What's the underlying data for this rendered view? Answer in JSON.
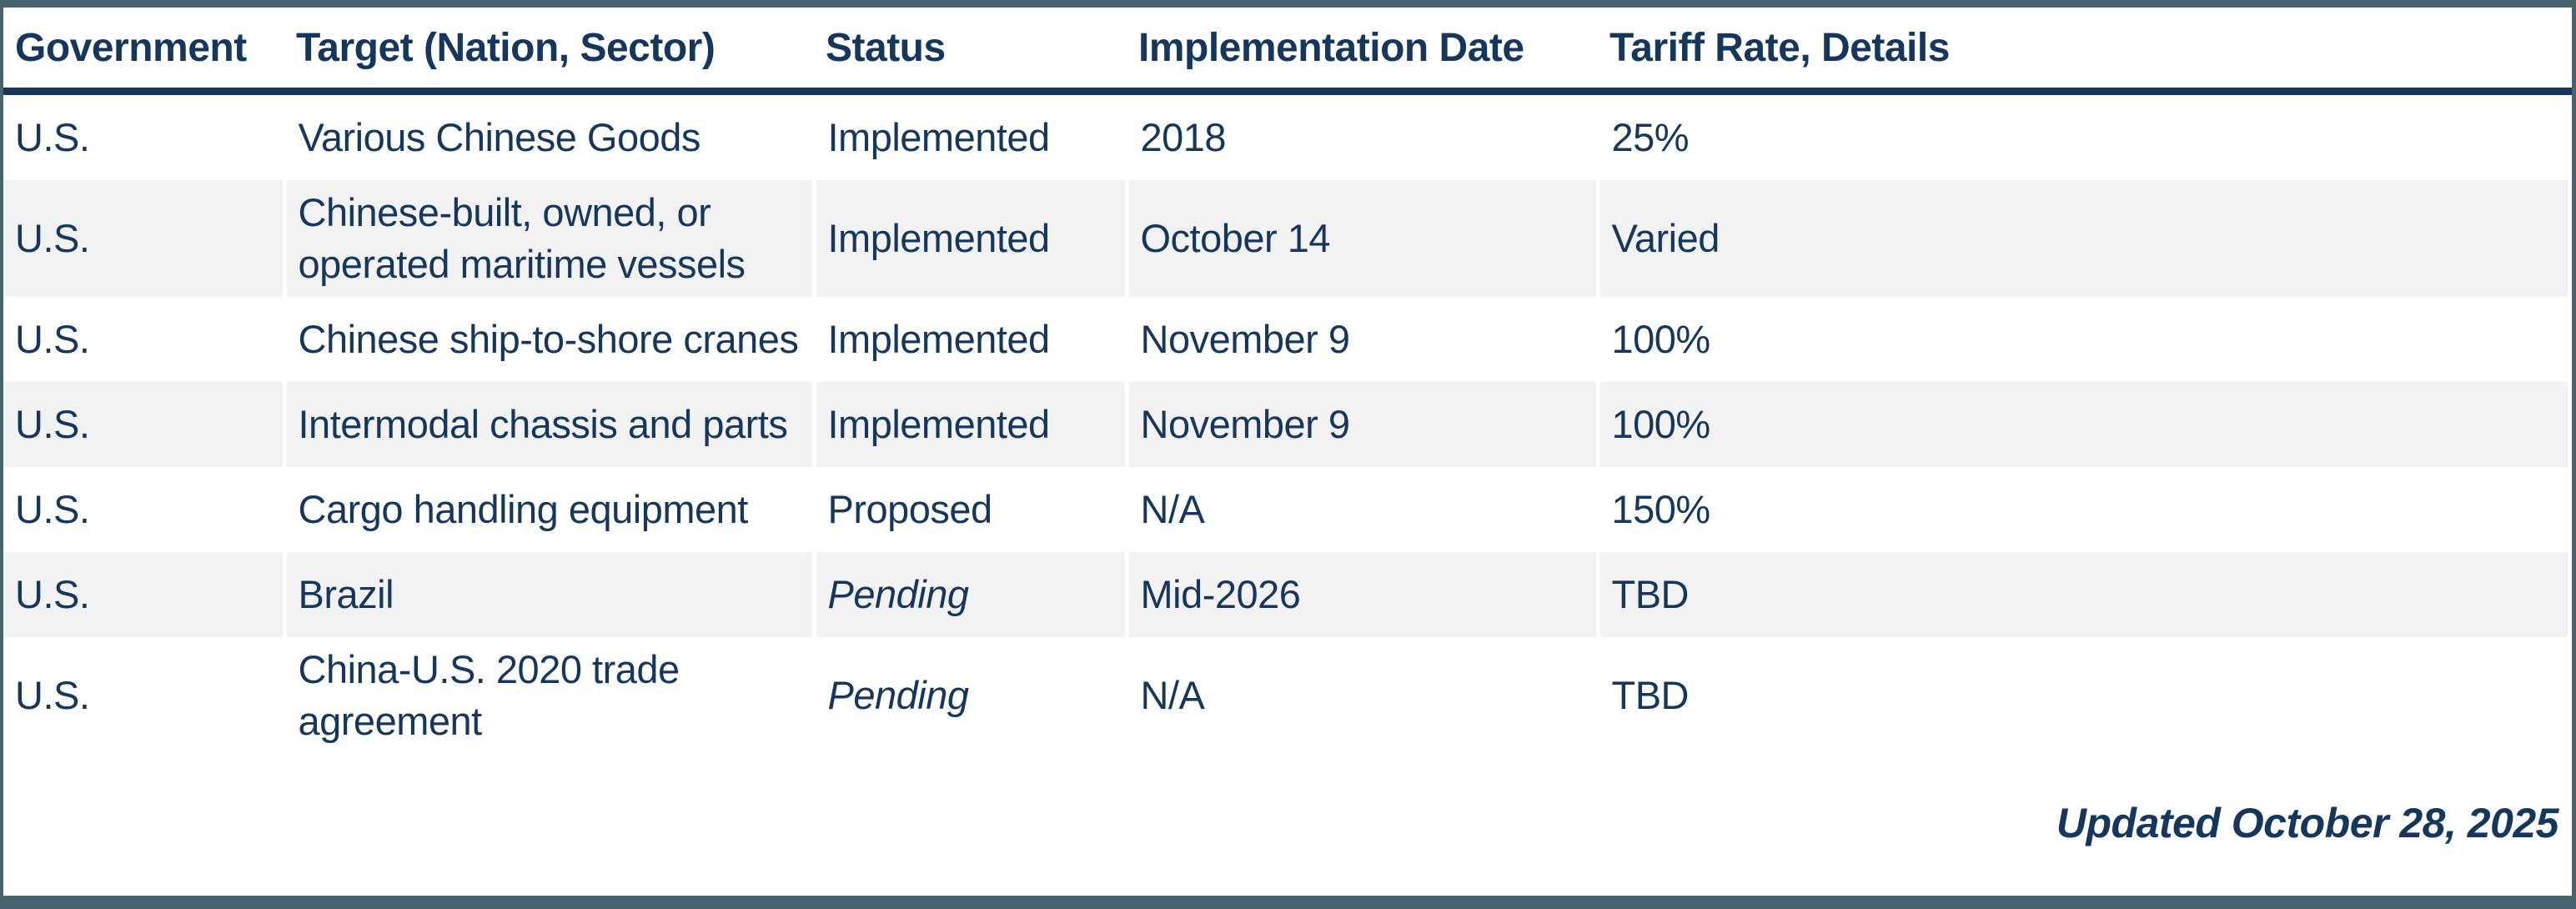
{
  "page": {
    "updated_note": "Updated October 28, 2025"
  },
  "colors": {
    "accent_bar": "#4a646f",
    "header_rule": "#16375d",
    "text": "#16375d",
    "stripe": "#f2f2f2",
    "row_bg": "#ffffff"
  },
  "table": {
    "columns": [
      "Government",
      "Target (Nation, Sector)",
      "Status",
      "Implementation Date",
      "Tariff Rate, Details"
    ],
    "rows": [
      {
        "government": "U.S.",
        "target": "Various Chinese Goods",
        "status": "Implemented",
        "status_style": "normal",
        "implementation_date": "2018",
        "tariff_rate": "25%"
      },
      {
        "government": "U.S.",
        "target": "Chinese-built, owned, or operated maritime vessels",
        "status": "Implemented",
        "status_style": "normal",
        "implementation_date": "October 14",
        "tariff_rate": "Varied"
      },
      {
        "government": "U.S.",
        "target": "Chinese ship-to-shore cranes",
        "status": "Implemented",
        "status_style": "normal",
        "implementation_date": "November 9",
        "tariff_rate": "100%"
      },
      {
        "government": "U.S.",
        "target": "Intermodal chassis and parts",
        "status": "Implemented",
        "status_style": "normal",
        "implementation_date": "November 9",
        "tariff_rate": "100%"
      },
      {
        "government": "U.S.",
        "target": "Cargo handling equipment",
        "status": "Proposed",
        "status_style": "normal",
        "implementation_date": "N/A",
        "tariff_rate": "150%"
      },
      {
        "government": "U.S.",
        "target": "Brazil",
        "status": "Pending",
        "status_style": "italic",
        "implementation_date": "Mid-2026",
        "tariff_rate": "TBD"
      },
      {
        "government": "U.S.",
        "target": "China-U.S. 2020 trade agreement",
        "status": "Pending",
        "status_style": "italic",
        "implementation_date": "N/A",
        "tariff_rate": "TBD"
      }
    ]
  },
  "chart_data": {
    "type": "table",
    "title": "",
    "columns": [
      "Government",
      "Target (Nation, Sector)",
      "Status",
      "Implementation Date",
      "Tariff Rate, Details"
    ],
    "rows": [
      [
        "U.S.",
        "Various Chinese Goods",
        "Implemented",
        "2018",
        "25%"
      ],
      [
        "U.S.",
        "Chinese-built, owned, or operated maritime vessels",
        "Implemented",
        "October 14",
        "Varied"
      ],
      [
        "U.S.",
        "Chinese ship-to-shore cranes",
        "Implemented",
        "November 9",
        "100%"
      ],
      [
        "U.S.",
        "Intermodal chassis and parts",
        "Implemented",
        "November 9",
        "100%"
      ],
      [
        "U.S.",
        "Cargo handling equipment",
        "Proposed",
        "N/A",
        "150%"
      ],
      [
        "U.S.",
        "Brazil",
        "Pending",
        "Mid-2026",
        "TBD"
      ],
      [
        "U.S.",
        "China-U.S. 2020 trade agreement",
        "Pending",
        "N/A",
        "TBD"
      ]
    ],
    "annotations": [
      "Updated October 28, 2025"
    ],
    "layout_hints": {
      "striped_rows": "even rows shaded #f2f2f2",
      "italic_status_row_indices": [
        5,
        6
      ],
      "header_rule_color": "#16375d",
      "frame_bar_color": "#4a646f"
    }
  }
}
